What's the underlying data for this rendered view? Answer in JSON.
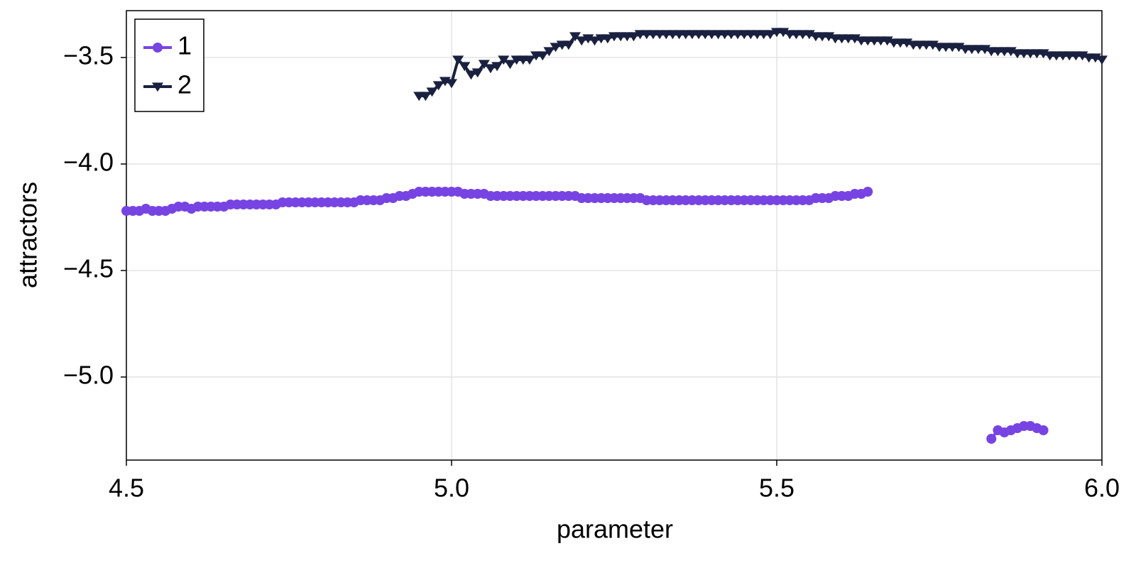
{
  "chart_data": {
    "type": "line",
    "xlabel": "parameter",
    "ylabel": "attractors",
    "x": [
      4.5,
      4.51,
      4.52,
      4.53,
      4.54,
      4.55,
      4.56,
      4.57,
      4.58,
      4.59,
      4.6,
      4.61,
      4.62,
      4.63,
      4.64,
      4.65,
      4.66,
      4.67,
      4.68,
      4.69,
      4.7,
      4.71,
      4.72,
      4.73,
      4.74,
      4.75,
      4.76,
      4.77,
      4.78,
      4.79,
      4.8,
      4.81,
      4.82,
      4.83,
      4.84,
      4.85,
      4.86,
      4.87,
      4.88,
      4.89,
      4.9,
      4.91,
      4.92,
      4.93,
      4.94,
      4.95,
      4.96,
      4.97,
      4.98,
      4.99,
      5.0,
      5.01,
      5.02,
      5.03,
      5.04,
      5.05,
      5.06,
      5.07,
      5.08,
      5.09,
      5.1,
      5.11,
      5.12,
      5.13,
      5.14,
      5.15,
      5.16,
      5.17,
      5.18,
      5.19,
      5.2,
      5.21,
      5.22,
      5.23,
      5.24,
      5.25,
      5.26,
      5.27,
      5.28,
      5.29,
      5.3,
      5.31,
      5.32,
      5.33,
      5.34,
      5.35,
      5.36,
      5.37,
      5.38,
      5.39,
      5.4,
      5.41,
      5.42,
      5.43,
      5.44,
      5.45,
      5.46,
      5.47,
      5.48,
      5.49,
      5.5,
      5.51,
      5.52,
      5.53,
      5.54,
      5.55,
      5.56,
      5.57,
      5.58,
      5.59,
      5.6,
      5.61,
      5.62,
      5.63,
      5.64,
      5.65,
      5.66,
      5.67,
      5.68,
      5.69,
      5.7,
      5.71,
      5.72,
      5.73,
      5.74,
      5.75,
      5.76,
      5.77,
      5.78,
      5.79,
      5.8,
      5.81,
      5.82,
      5.83,
      5.84,
      5.85,
      5.86,
      5.87,
      5.88,
      5.89,
      5.9,
      5.91,
      5.92,
      5.93,
      5.94,
      5.95,
      5.96,
      5.97,
      5.98,
      5.99,
      6.0
    ],
    "series": [
      {
        "name": "1",
        "color": "#7744e3",
        "marker": "circle",
        "values": [
          -4.22,
          -4.22,
          -4.22,
          -4.21,
          -4.22,
          -4.22,
          -4.22,
          -4.21,
          -4.2,
          -4.2,
          -4.21,
          -4.2,
          -4.2,
          -4.2,
          -4.2,
          -4.2,
          -4.19,
          -4.19,
          -4.19,
          -4.19,
          -4.19,
          -4.19,
          -4.19,
          -4.19,
          -4.18,
          -4.18,
          -4.18,
          -4.18,
          -4.18,
          -4.18,
          -4.18,
          -4.18,
          -4.18,
          -4.18,
          -4.18,
          -4.18,
          -4.17,
          -4.17,
          -4.17,
          -4.17,
          -4.16,
          -4.16,
          -4.15,
          -4.15,
          -4.14,
          -4.13,
          -4.13,
          -4.13,
          -4.13,
          -4.13,
          -4.13,
          -4.13,
          -4.14,
          -4.14,
          -4.14,
          -4.14,
          -4.15,
          -4.15,
          -4.15,
          -4.15,
          -4.15,
          -4.15,
          -4.15,
          -4.15,
          -4.15,
          -4.15,
          -4.15,
          -4.15,
          -4.15,
          -4.15,
          -4.16,
          -4.16,
          -4.16,
          -4.16,
          -4.16,
          -4.16,
          -4.16,
          -4.16,
          -4.16,
          -4.16,
          -4.17,
          -4.17,
          -4.17,
          -4.17,
          -4.17,
          -4.17,
          -4.17,
          -4.17,
          -4.17,
          -4.17,
          -4.17,
          -4.17,
          -4.17,
          -4.17,
          -4.17,
          -4.17,
          -4.17,
          -4.17,
          -4.17,
          -4.17,
          -4.17,
          -4.17,
          -4.17,
          -4.17,
          -4.17,
          -4.17,
          -4.16,
          -4.16,
          -4.16,
          -4.15,
          -4.15,
          -4.15,
          -4.14,
          -4.14,
          -4.13,
          null,
          null,
          null,
          null,
          null,
          null,
          null,
          null,
          null,
          null,
          null,
          null,
          null,
          null,
          null,
          null,
          null,
          null,
          -5.29,
          -5.25,
          -5.26,
          -5.25,
          -5.24,
          -5.23,
          -5.23,
          -5.24,
          -5.25,
          null,
          null,
          null,
          null,
          null,
          null,
          null,
          null,
          null
        ]
      },
      {
        "name": "2",
        "color": "#1a2140",
        "marker": "triangle-down",
        "values": [
          null,
          null,
          null,
          null,
          null,
          null,
          null,
          null,
          null,
          null,
          null,
          null,
          null,
          null,
          null,
          null,
          null,
          null,
          null,
          null,
          null,
          null,
          null,
          null,
          null,
          null,
          null,
          null,
          null,
          null,
          null,
          null,
          null,
          null,
          null,
          null,
          null,
          null,
          null,
          null,
          null,
          null,
          null,
          null,
          null,
          -3.68,
          -3.68,
          -3.66,
          -3.63,
          -3.61,
          -3.62,
          -3.51,
          -3.54,
          -3.58,
          -3.57,
          -3.53,
          -3.55,
          -3.54,
          -3.51,
          -3.53,
          -3.51,
          -3.51,
          -3.51,
          -3.49,
          -3.49,
          -3.47,
          -3.45,
          -3.44,
          -3.44,
          -3.4,
          -3.42,
          -3.41,
          -3.42,
          -3.41,
          -3.41,
          -3.4,
          -3.4,
          -3.4,
          -3.4,
          -3.39,
          -3.39,
          -3.39,
          -3.39,
          -3.39,
          -3.39,
          -3.39,
          -3.39,
          -3.39,
          -3.39,
          -3.39,
          -3.39,
          -3.39,
          -3.39,
          -3.39,
          -3.39,
          -3.39,
          -3.39,
          -3.39,
          -3.39,
          -3.39,
          -3.38,
          -3.38,
          -3.39,
          -3.39,
          -3.39,
          -3.39,
          -3.4,
          -3.4,
          -3.4,
          -3.41,
          -3.41,
          -3.41,
          -3.41,
          -3.42,
          -3.42,
          -3.42,
          -3.42,
          -3.42,
          -3.43,
          -3.43,
          -3.43,
          -3.44,
          -3.44,
          -3.44,
          -3.44,
          -3.45,
          -3.45,
          -3.45,
          -3.45,
          -3.46,
          -3.46,
          -3.46,
          -3.46,
          -3.47,
          -3.47,
          -3.47,
          -3.47,
          -3.48,
          -3.48,
          -3.48,
          -3.48,
          -3.48,
          -3.49,
          -3.49,
          -3.49,
          -3.49,
          -3.49,
          -3.49,
          -3.5,
          -3.5,
          -3.51
        ]
      }
    ],
    "xlim": [
      4.5,
      6.0
    ],
    "ylim": [
      -5.39,
      -3.28
    ],
    "xticks": [
      4.5,
      {
        "value": 5,
        "label": "5.0"
      },
      5.5,
      {
        "value": 6,
        "label": "6.0"
      }
    ],
    "yticks": [
      {
        "value": -3.5,
        "label": "−3.5"
      },
      {
        "value": -4,
        "label": "−4.0"
      },
      {
        "value": -4.5,
        "label": "−4.5"
      },
      {
        "value": -5,
        "label": "−5.0"
      }
    ],
    "grid": true,
    "legend": "upper-left"
  }
}
